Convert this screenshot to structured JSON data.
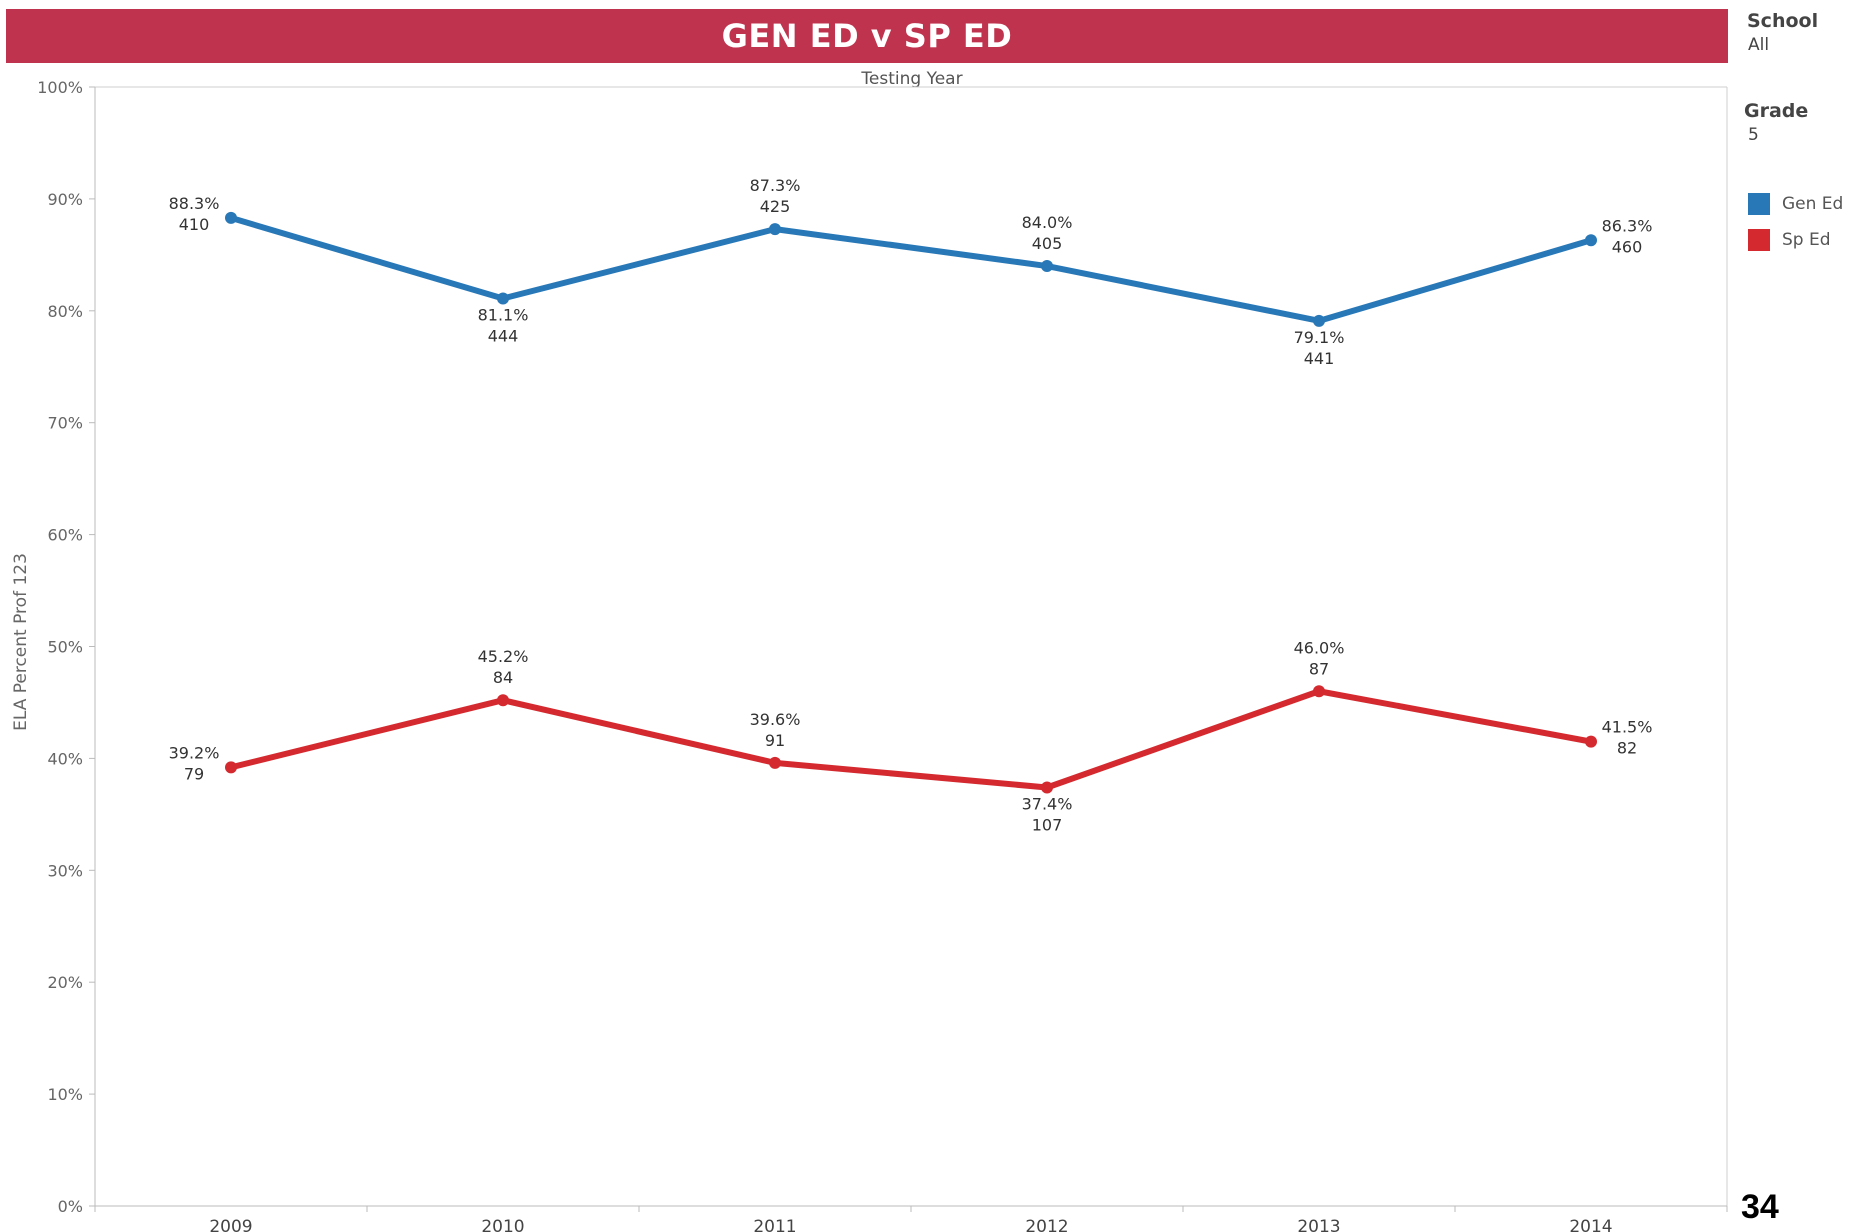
{
  "header": {
    "title": "GEN ED v SP ED"
  },
  "filters": [
    {
      "title": "School",
      "value": "All"
    },
    {
      "title": "Grade",
      "value": "5"
    }
  ],
  "legend": [
    {
      "label": "Gen Ed",
      "color": "#2878b8"
    },
    {
      "label": "Sp Ed",
      "color": "#d42a2f"
    }
  ],
  "page_number": "34",
  "chart_data": {
    "type": "line",
    "title": "",
    "xlabel": "Testing Year",
    "ylabel": "ELA Percent Prof 123",
    "categories": [
      "2009",
      "2010",
      "2011",
      "2012",
      "2013",
      "2014"
    ],
    "ylim": [
      0,
      100
    ],
    "yticks": [
      "0%",
      "10%",
      "20%",
      "30%",
      "40%",
      "50%",
      "60%",
      "70%",
      "80%",
      "90%",
      "100%"
    ],
    "grid": false,
    "legend_position": "right",
    "series": [
      {
        "name": "Gen Ed",
        "color": "#2878b8",
        "values": [
          88.3,
          81.1,
          87.3,
          84.0,
          79.1,
          86.3
        ],
        "value_labels": [
          "88.3%",
          "81.1%",
          "87.3%",
          "84.0%",
          "79.1%",
          "86.3%"
        ],
        "counts": [
          "410",
          "444",
          "425",
          "405",
          "441",
          "460"
        ]
      },
      {
        "name": "Sp Ed",
        "color": "#d42a2f",
        "values": [
          39.2,
          45.2,
          39.6,
          37.4,
          46.0,
          41.5
        ],
        "value_labels": [
          "39.2%",
          "45.2%",
          "39.6%",
          "37.4%",
          "46.0%",
          "41.5%"
        ],
        "counts": [
          "79",
          "84",
          "91",
          "107",
          "87",
          "82"
        ]
      }
    ]
  }
}
